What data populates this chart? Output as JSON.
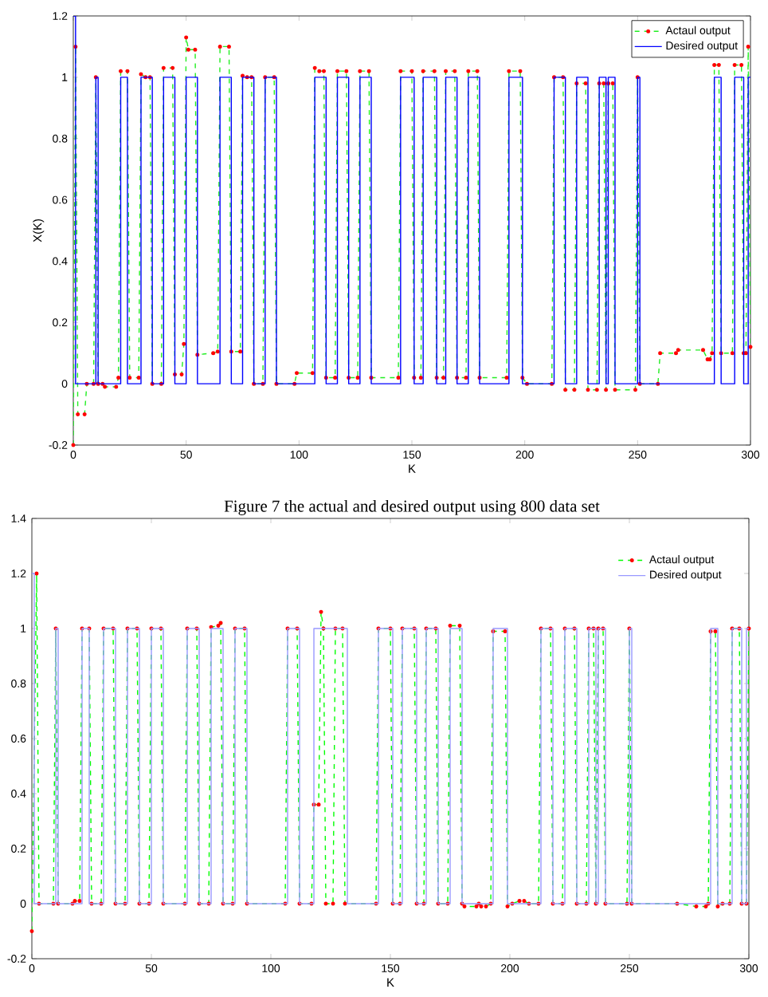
{
  "chart_data": [
    {
      "type": "line",
      "xlabel": "K",
      "ylabel": "X(K)",
      "annotations": [
        "Figure 7 the actual and desired output using 800 data set"
      ],
      "xlim": [
        0,
        300
      ],
      "ylim": [
        -0.2,
        1.2
      ],
      "xticks": [
        0,
        50,
        100,
        150,
        200,
        250,
        300
      ],
      "yticks": [
        -0.2,
        0,
        0.2,
        0.4,
        0.6,
        0.8,
        1,
        1.2
      ],
      "legend": "top right",
      "grid": false,
      "series": [
        {
          "name": "Actaul output",
          "color": "#22ee22",
          "line_style": "dashed",
          "marker": "circle",
          "x": [
            0,
            1,
            2,
            5,
            6,
            9,
            10,
            11,
            13,
            14,
            19,
            20,
            21,
            24,
            25,
            29,
            30,
            32,
            34,
            35,
            39,
            40,
            44,
            45,
            48,
            49,
            50,
            51,
            54,
            55,
            62,
            64,
            65,
            69,
            70,
            74,
            75,
            77,
            79,
            80,
            84,
            85,
            89,
            90,
            98,
            99,
            106,
            107,
            109,
            111,
            112,
            116,
            117,
            121,
            122,
            126,
            127,
            131,
            132,
            144,
            145,
            150,
            151,
            154,
            155,
            160,
            161,
            164,
            165,
            169,
            170,
            174,
            175,
            179,
            180,
            192,
            193,
            198,
            199,
            201,
            212,
            213,
            217,
            218,
            222,
            223,
            227,
            228,
            232,
            233,
            235,
            236,
            237,
            239,
            240,
            249,
            250,
            251,
            259,
            260,
            267,
            268,
            279,
            281,
            282,
            283,
            284,
            286,
            287,
            292,
            293,
            296,
            297,
            298,
            299,
            300
          ],
          "values": [
            -0.2,
            1.1,
            -0.1,
            -0.1,
            0,
            0,
            1,
            0,
            0,
            -0.01,
            -0.01,
            0.02,
            1.02,
            1.02,
            0.02,
            0.02,
            1.01,
            1,
            1,
            0,
            0,
            1.03,
            1.03,
            0.03,
            0.03,
            0.13,
            1.13,
            1.09,
            1.09,
            0.095,
            0.1,
            0.105,
            1.1,
            1.1,
            0.105,
            0.105,
            1.005,
            1,
            1,
            0,
            0,
            1,
            1,
            0,
            0,
            0.035,
            0.035,
            1.03,
            1.02,
            1.02,
            0.02,
            0.02,
            1.02,
            1.02,
            0.02,
            0.02,
            1.02,
            1.02,
            0.02,
            0.02,
            1.02,
            1.02,
            0.02,
            0.02,
            1.02,
            1.02,
            0.02,
            0.02,
            1.02,
            1.02,
            0.02,
            0.02,
            1.02,
            1.02,
            0.02,
            0.02,
            1.02,
            1.02,
            0.02,
            0,
            0,
            1,
            1,
            -0.02,
            -0.02,
            0.98,
            0.98,
            -0.02,
            -0.02,
            0.98,
            0.98,
            -0.02,
            0.98,
            0.98,
            -0.02,
            -0.02,
            1,
            0,
            0,
            0.1,
            0.1,
            0.11,
            0.11,
            0.08,
            0.08,
            0.1,
            1.04,
            1.04,
            0.1,
            0.1,
            1.04,
            1.04,
            0.1,
            0.1,
            1.1,
            0.12
          ]
        },
        {
          "name": "Desired output",
          "color": "#0000ff",
          "line_style": "solid",
          "marker": "none",
          "x": [
            0,
            1,
            1,
            10,
            10,
            11,
            11,
            21,
            21,
            24,
            24,
            30,
            30,
            35,
            35,
            40,
            40,
            45,
            45,
            50,
            50,
            55,
            55,
            65,
            65,
            70,
            70,
            75,
            75,
            80,
            80,
            85,
            85,
            90,
            90,
            107,
            107,
            112,
            112,
            117,
            117,
            122,
            122,
            127,
            127,
            132,
            132,
            145,
            145,
            151,
            151,
            155,
            155,
            161,
            161,
            165,
            165,
            170,
            170,
            175,
            175,
            180,
            180,
            193,
            193,
            199,
            199,
            213,
            213,
            218,
            218,
            223,
            223,
            228,
            228,
            233,
            233,
            236,
            236,
            237,
            237,
            240,
            240,
            250,
            250,
            251,
            251,
            284,
            284,
            287,
            287,
            293,
            293,
            297,
            297,
            299,
            299,
            300
          ],
          "values": [
            1.2,
            1.2,
            0,
            0,
            1,
            1,
            0,
            0,
            1,
            1,
            0,
            0,
            1,
            1,
            0,
            0,
            1,
            1,
            0,
            0,
            1,
            1,
            0,
            0,
            1,
            1,
            0,
            0,
            1,
            1,
            0,
            0,
            1,
            1,
            0,
            0,
            1,
            1,
            0,
            0,
            1,
            1,
            0,
            0,
            1,
            1,
            0,
            0,
            1,
            1,
            0,
            0,
            1,
            1,
            0,
            0,
            1,
            1,
            0,
            0,
            1,
            1,
            0,
            0,
            1,
            1,
            0,
            0,
            1,
            1,
            0,
            0,
            1,
            1,
            0,
            0,
            1,
            1,
            0,
            0,
            1,
            1,
            0,
            0,
            1,
            1,
            0,
            0,
            1,
            1,
            0,
            0,
            1,
            1,
            0,
            0,
            1,
            1
          ]
        }
      ]
    },
    {
      "type": "line",
      "xlabel": "K",
      "xlim": [
        0,
        300
      ],
      "ylim": [
        -0.2,
        1.4
      ],
      "xticks": [
        0,
        50,
        100,
        150,
        200,
        250,
        300
      ],
      "yticks": [
        -0.2,
        0,
        0.2,
        0.4,
        0.6,
        0.8,
        1,
        1.2,
        1.4
      ],
      "legend": "top right",
      "grid": false,
      "series": [
        {
          "name": "Actaul output",
          "color": "#00ff00",
          "line_style": "dashed",
          "marker": "circle",
          "x": [
            0,
            2,
            3,
            9,
            10,
            11,
            17,
            18,
            20,
            21,
            24,
            25,
            29,
            30,
            34,
            35,
            39,
            40,
            44,
            45,
            49,
            50,
            54,
            55,
            64,
            65,
            69,
            70,
            74,
            75,
            78,
            79,
            80,
            84,
            85,
            89,
            90,
            106,
            107,
            111,
            112,
            117,
            118,
            120,
            121,
            122,
            123,
            126,
            127,
            130,
            131,
            144,
            145,
            150,
            151,
            154,
            155,
            160,
            161,
            164,
            165,
            169,
            170,
            174,
            175,
            179,
            180,
            181,
            186,
            187,
            188,
            190,
            192,
            193,
            198,
            199,
            201,
            204,
            206,
            208,
            212,
            213,
            217,
            218,
            222,
            223,
            227,
            228,
            232,
            233,
            235,
            236,
            237,
            239,
            240,
            249,
            250,
            251,
            270,
            278,
            282,
            283,
            284,
            286,
            287,
            289,
            292,
            293,
            296,
            297,
            299,
            300
          ],
          "values": [
            -0.1,
            1.2,
            0,
            0,
            1,
            0,
            0,
            0.01,
            0.01,
            1,
            1,
            0,
            0,
            1,
            1,
            0,
            0,
            1,
            1,
            0,
            0,
            1,
            1,
            0,
            0,
            1,
            1,
            0,
            0,
            1.005,
            1.01,
            1.02,
            0,
            0,
            1,
            1,
            0,
            0,
            1,
            1,
            0,
            0,
            0.36,
            0.36,
            1.06,
            1,
            0,
            0,
            1,
            1,
            0,
            0,
            1,
            1,
            0,
            0,
            1,
            1,
            0,
            0,
            1,
            1,
            0,
            0,
            1.01,
            1.01,
            0,
            -0.01,
            -0.01,
            0,
            -0.01,
            -0.01,
            0,
            0.99,
            0.99,
            -0.01,
            0,
            0.01,
            0.01,
            0,
            0,
            1,
            1,
            0,
            0,
            1,
            1,
            0,
            0,
            1,
            1,
            0,
            1,
            1,
            0,
            0,
            1,
            0,
            0,
            -0.01,
            -0.01,
            0,
            0.99,
            0.99,
            -0.01,
            0,
            0,
            1,
            1,
            0,
            0,
            1
          ]
        },
        {
          "name": "Desired output",
          "color": "#9999ff",
          "line_style": "solid",
          "marker": "none",
          "x": [
            0,
            1,
            1,
            10,
            10,
            11,
            11,
            21,
            21,
            24,
            24,
            30,
            30,
            35,
            35,
            40,
            40,
            45,
            45,
            50,
            50,
            55,
            55,
            65,
            65,
            70,
            70,
            75,
            75,
            80,
            80,
            85,
            85,
            90,
            90,
            107,
            107,
            112,
            112,
            118,
            118,
            132,
            132,
            145,
            145,
            151,
            151,
            155,
            155,
            161,
            161,
            165,
            165,
            170,
            170,
            175,
            175,
            180,
            180,
            193,
            193,
            199,
            199,
            213,
            213,
            218,
            218,
            223,
            223,
            228,
            228,
            233,
            233,
            236,
            236,
            237,
            237,
            240,
            240,
            250,
            250,
            251,
            251,
            284,
            284,
            287,
            287,
            293,
            293,
            297,
            297,
            299,
            299,
            300
          ],
          "values": [
            1.2,
            1.2,
            0,
            0,
            1,
            1,
            0,
            0,
            1,
            1,
            0,
            0,
            1,
            1,
            0,
            0,
            1,
            1,
            0,
            0,
            1,
            1,
            0,
            0,
            1,
            1,
            0,
            0,
            1,
            1,
            0,
            0,
            1,
            1,
            0,
            0,
            1,
            1,
            0,
            0,
            1,
            1,
            0,
            0,
            1,
            1,
            0,
            0,
            1,
            1,
            0,
            0,
            1,
            1,
            0,
            0,
            1,
            1,
            0,
            0,
            1,
            1,
            0,
            0,
            1,
            1,
            0,
            0,
            1,
            1,
            0,
            0,
            1,
            1,
            0,
            0,
            1,
            1,
            0,
            0,
            1,
            1,
            0,
            0,
            1,
            1,
            0,
            0,
            1,
            1,
            0,
            0,
            1,
            1
          ]
        }
      ]
    }
  ]
}
